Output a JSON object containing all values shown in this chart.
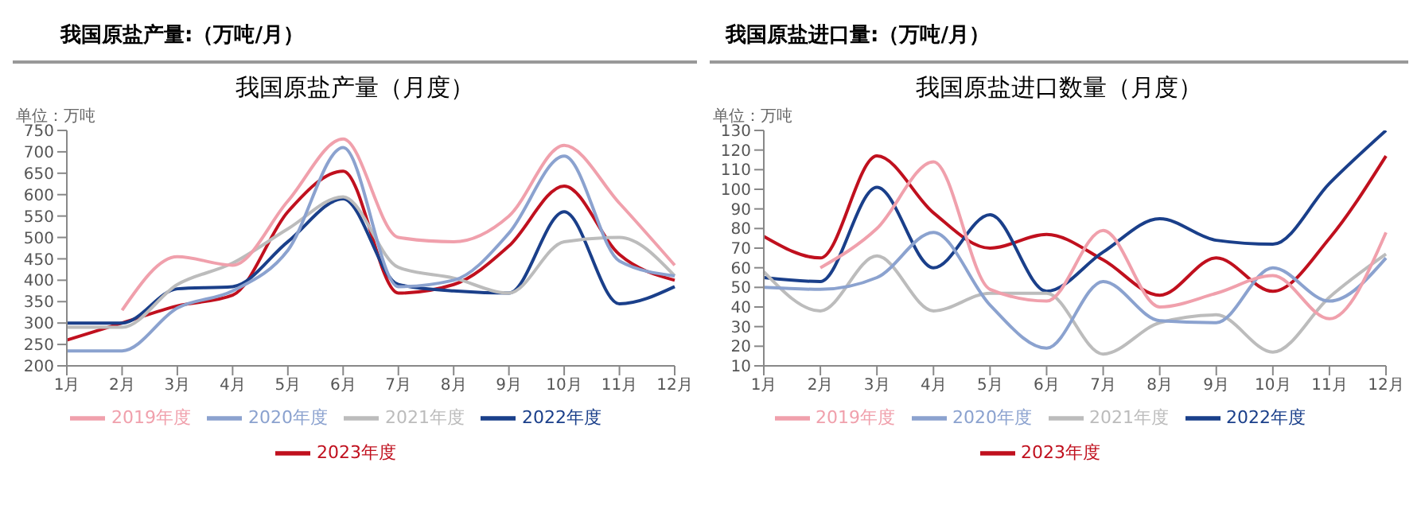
{
  "chart_data": [
    {
      "type": "line",
      "title": "我国原盐产量:（万吨/月）",
      "subtitle": "我国原盐产量（月度）",
      "ylabel": "单位：万吨",
      "categories": [
        "1月",
        "2月",
        "3月",
        "4月",
        "5月",
        "6月",
        "7月",
        "8月",
        "9月",
        "10月",
        "11月",
        "12月"
      ],
      "ylim": [
        200,
        750
      ],
      "yticks": [
        200,
        250,
        300,
        350,
        400,
        450,
        500,
        550,
        600,
        650,
        700,
        750
      ],
      "grid": false,
      "legend": "bottom",
      "series": [
        {
          "name": "2023年度",
          "color": "#c0101e",
          "values": [
            260,
            300,
            340,
            365,
            560,
            655,
            370,
            390,
            480,
            620,
            460,
            400
          ]
        },
        {
          "name": "2022年度",
          "color": "#1a3f8a",
          "values": [
            300,
            300,
            380,
            385,
            490,
            590,
            390,
            375,
            370,
            560,
            345,
            385
          ]
        },
        {
          "name": "2021年度",
          "color": "#bcbcbc",
          "values": [
            290,
            290,
            390,
            440,
            520,
            595,
            430,
            405,
            370,
            490,
            500,
            410
          ]
        },
        {
          "name": "2020年度",
          "color": "#8ba2cf",
          "values": [
            235,
            235,
            335,
            375,
            470,
            710,
            385,
            400,
            510,
            690,
            445,
            410
          ]
        },
        {
          "name": "2019年度",
          "color": "#f0a0ac",
          "values": [
            null,
            330,
            455,
            435,
            585,
            730,
            500,
            490,
            550,
            715,
            580,
            435
          ]
        }
      ]
    },
    {
      "type": "line",
      "title": "我国原盐进口量:（万吨/月）",
      "subtitle": "我国原盐进口数量（月度）",
      "ylabel": "单位：万吨",
      "categories": [
        "1月",
        "2月",
        "3月",
        "4月",
        "5月",
        "6月",
        "7月",
        "8月",
        "9月",
        "10月",
        "11月",
        "12月"
      ],
      "ylim": [
        10,
        130
      ],
      "yticks": [
        10,
        20,
        30,
        40,
        50,
        60,
        70,
        80,
        90,
        100,
        110,
        120,
        130
      ],
      "grid": false,
      "legend": "bottom",
      "series": [
        {
          "name": "2023年度",
          "color": "#c0101e",
          "values": [
            76,
            65,
            117,
            88,
            70,
            77,
            64,
            46,
            65,
            48,
            75,
            117
          ]
        },
        {
          "name": "2022年度",
          "color": "#1a3f8a",
          "values": [
            55,
            53,
            101,
            60,
            87,
            48,
            68,
            85,
            74,
            72,
            103,
            130
          ]
        },
        {
          "name": "2021年度",
          "color": "#bcbcbc",
          "values": [
            58,
            38,
            66,
            38,
            47,
            47,
            16,
            32,
            36,
            17,
            45,
            67
          ]
        },
        {
          "name": "2020年度",
          "color": "#8ba2cf",
          "values": [
            50,
            49,
            55,
            78,
            41,
            19,
            53,
            33,
            32,
            60,
            43,
            65
          ]
        },
        {
          "name": "2019年度",
          "color": "#f0a0ac",
          "values": [
            null,
            60,
            80,
            114,
            49,
            43,
            79,
            40,
            47,
            56,
            34,
            78
          ]
        }
      ]
    }
  ]
}
